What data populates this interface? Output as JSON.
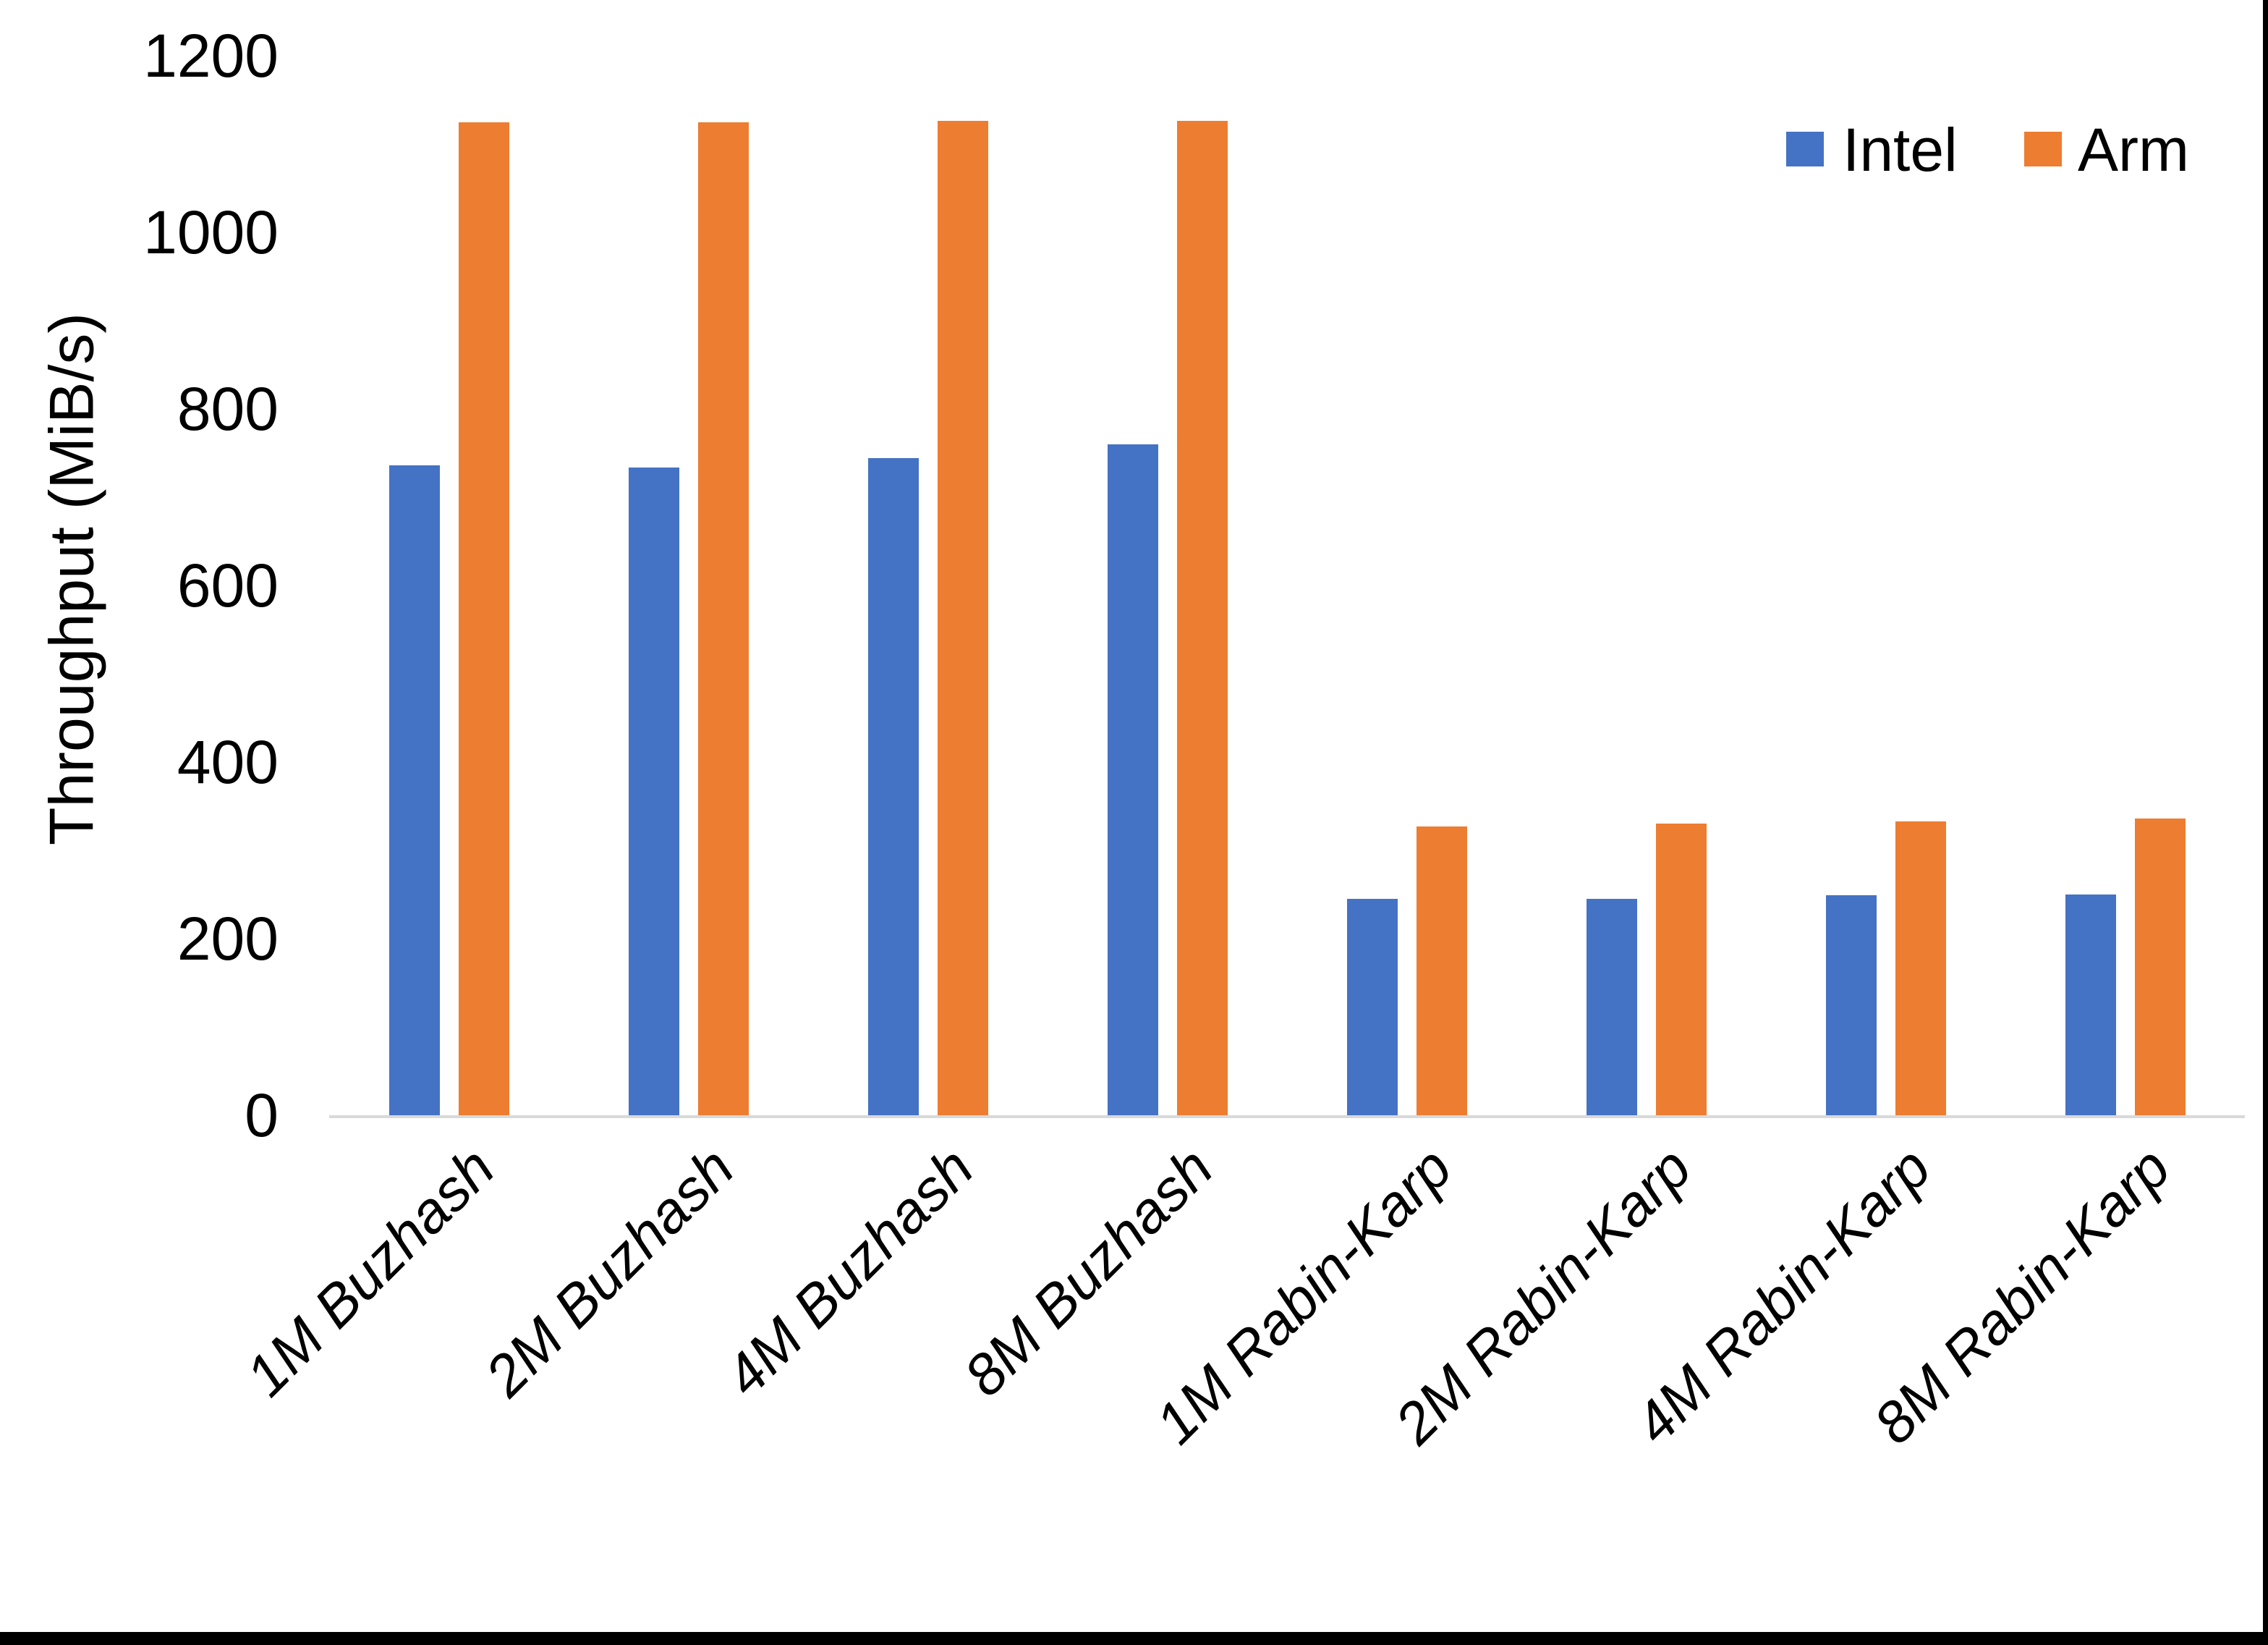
{
  "chart_data": {
    "type": "bar",
    "title": "",
    "ylabel": "Throughput (MiB/s)",
    "xlabel": "",
    "ylim": [
      0,
      1200
    ],
    "yticks": [
      0,
      200,
      400,
      600,
      800,
      1000,
      1200
    ],
    "grid": false,
    "legend_position": "top-right",
    "axis_line_color": "#D9D9D9",
    "categories": [
      "1M Buzhash",
      "2M Buzhash",
      "4M Buzhash",
      "8M Buzhash",
      "1M Rabin-Karp",
      "2M Rabin-Karp",
      "4M Rabin-Karp",
      "8M Rabin-Karp"
    ],
    "series": [
      {
        "name": "Intel",
        "color": "#4472C4",
        "values": [
          736,
          734,
          744,
          760,
          245,
          245,
          249,
          250
        ]
      },
      {
        "name": "Arm",
        "color": "#ED7D31",
        "values": [
          1125,
          1125,
          1126,
          1126,
          327,
          330,
          333,
          336
        ]
      }
    ]
  }
}
